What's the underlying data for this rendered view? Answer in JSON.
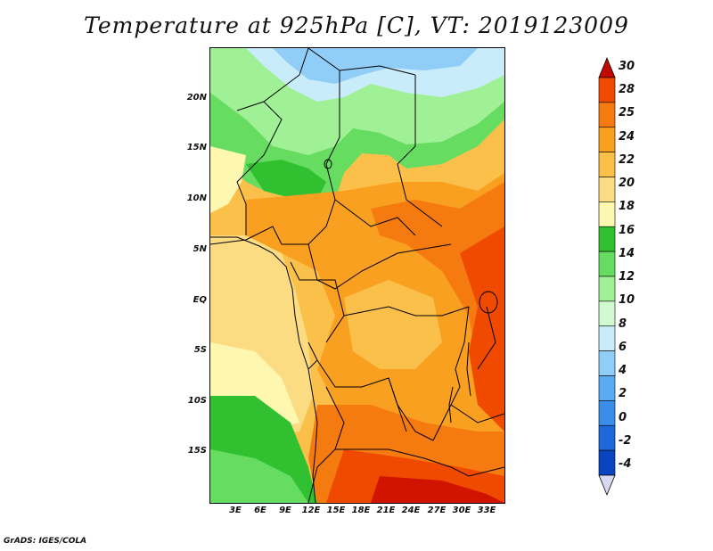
{
  "title": "Temperature at 925hPa [C], VT: 2019123009",
  "credit": "GrADS: IGES/COLA",
  "axes": {
    "lat_labels": [
      "20N",
      "15N",
      "10N",
      "5N",
      "EQ",
      "5S",
      "10S",
      "15S"
    ],
    "lon_labels": [
      "3E",
      "6E",
      "9E",
      "12E",
      "15E",
      "18E",
      "21E",
      "24E",
      "27E",
      "30E",
      "33E"
    ]
  },
  "colorbar": {
    "labels": [
      "30",
      "28",
      "25",
      "24",
      "22",
      "20",
      "18",
      "16",
      "14",
      "12",
      "10",
      "8",
      "6",
      "4",
      "2",
      "0",
      "-2",
      "-4"
    ],
    "colors": [
      "#d01400",
      "#f04a00",
      "#f57a10",
      "#f9a020",
      "#fbc04a",
      "#fcdc82",
      "#fdf7b0",
      "#30c030",
      "#66dd60",
      "#a0f096",
      "#d2fad0",
      "#c8ecfa",
      "#90cdf7",
      "#5aabf2",
      "#3a8de8",
      "#1e68dc",
      "#0a44c0",
      "#0a1a80"
    ],
    "arrow_top_color": "#c00a00",
    "arrow_bottom_color": "#d8d8f0"
  }
}
